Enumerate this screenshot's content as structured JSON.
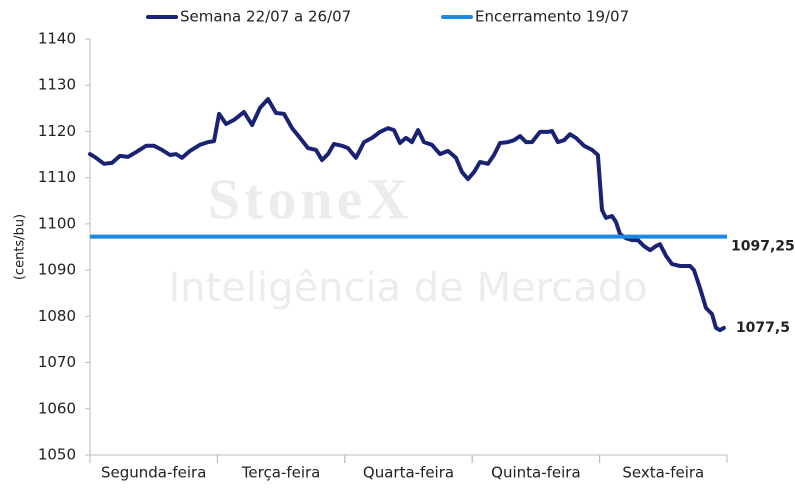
{
  "chart_data": {
    "type": "line",
    "watermark": [
      "StoneX",
      "Inteligência de Mercado"
    ],
    "y_label": "(cents/bu)",
    "xlim": [
      0,
      5
    ],
    "xticks": [
      {
        "value": 0.5,
        "label": "Segunda-feira"
      },
      {
        "value": 1.5,
        "label": "Terça-feira"
      },
      {
        "value": 2.5,
        "label": "Quarta-feira"
      },
      {
        "value": 3.5,
        "label": "Quinta-feira"
      },
      {
        "value": 4.5,
        "label": "Sexta-feira"
      }
    ],
    "ylim": [
      1050,
      1140
    ],
    "yticks": [
      1050,
      1060,
      1070,
      1080,
      1090,
      1100,
      1110,
      1120,
      1130,
      1140
    ],
    "grid": false,
    "series": [
      {
        "name": "Semana 22/07 a 26/07",
        "color": "#1a2373",
        "x": [
          0,
          0.047,
          0.11,
          0.173,
          0.235,
          0.298,
          0.361,
          0.44,
          0.502,
          0.565,
          0.628,
          0.675,
          0.722,
          0.785,
          0.863,
          0.926,
          0.973,
          1.013,
          1.068,
          1.13,
          1.209,
          1.272,
          1.334,
          1.397,
          1.46,
          1.523,
          1.586,
          1.648,
          1.711,
          1.774,
          1.821,
          1.868,
          1.915,
          1.978,
          2.025,
          2.088,
          2.151,
          2.214,
          2.276,
          2.339,
          2.386,
          2.433,
          2.48,
          2.527,
          2.575,
          2.622,
          2.684,
          2.747,
          2.81,
          2.873,
          2.92,
          2.967,
          3.014,
          3.061,
          3.124,
          3.171,
          3.218,
          3.281,
          3.328,
          3.375,
          3.422,
          3.469,
          3.532,
          3.595,
          3.626,
          3.673,
          3.721,
          3.768,
          3.815,
          3.878,
          3.94,
          3.987,
          4.019,
          4.05,
          4.097,
          4.129,
          4.16,
          4.207,
          4.254,
          4.301,
          4.348,
          4.396,
          4.443,
          4.474,
          4.521,
          4.568,
          4.631,
          4.71,
          4.741,
          4.788,
          4.835,
          4.882,
          4.914,
          4.945,
          4.976
        ],
        "values": [
          1115.1,
          1114.3,
          1113.0,
          1113.2,
          1114.7,
          1114.5,
          1115.5,
          1116.9,
          1116.9,
          1116.0,
          1114.9,
          1115.1,
          1114.3,
          1115.8,
          1117.1,
          1117.7,
          1117.9,
          1123.8,
          1121.6,
          1122.5,
          1124.2,
          1121.4,
          1125.1,
          1127.0,
          1124.0,
          1123.8,
          1120.7,
          1118.6,
          1116.4,
          1116.0,
          1113.8,
          1115.1,
          1117.3,
          1116.9,
          1116.4,
          1114.3,
          1117.7,
          1118.6,
          1119.9,
          1120.7,
          1120.3,
          1117.5,
          1118.6,
          1117.7,
          1120.3,
          1117.7,
          1117.1,
          1115.1,
          1115.8,
          1114.3,
          1111.2,
          1109.7,
          1111.2,
          1113.4,
          1113.0,
          1114.9,
          1117.5,
          1117.7,
          1118.1,
          1119.0,
          1117.7,
          1117.7,
          1119.9,
          1119.9,
          1120.1,
          1117.7,
          1118.1,
          1119.4,
          1118.6,
          1116.9,
          1116.0,
          1114.9,
          1103.0,
          1101.3,
          1101.7,
          1100.4,
          1097.8,
          1096.9,
          1096.5,
          1096.5,
          1095.2,
          1094.3,
          1095.2,
          1095.6,
          1093.1,
          1091.3,
          1090.9,
          1090.9,
          1090.0,
          1086.1,
          1081.8,
          1080.5,
          1077.5,
          1077.0,
          1077.5
        ],
        "value_labels": [
          null,
          null,
          null,
          null,
          null,
          null,
          null,
          null,
          null,
          null,
          null,
          null,
          null,
          null,
          null,
          null,
          null,
          null,
          null,
          null,
          null,
          null,
          null,
          null,
          null,
          null,
          null,
          null,
          null,
          null,
          null,
          null,
          null,
          null,
          null,
          null,
          null,
          null,
          null,
          null,
          null,
          null,
          null,
          null,
          null,
          null,
          null,
          null,
          null,
          null,
          null,
          null,
          null,
          null,
          null,
          null,
          null,
          null,
          null,
          null,
          null,
          null,
          null,
          null,
          null,
          null,
          null,
          null,
          null,
          null,
          null,
          null,
          null,
          null,
          null,
          null,
          null,
          null,
          null,
          null,
          null,
          null,
          null,
          null,
          null,
          null,
          null,
          null,
          null,
          null,
          null,
          null,
          null,
          null,
          "1077,5"
        ]
      },
      {
        "name": "Encerramento 19/07",
        "color": "#1e88e5",
        "values": [
          1097.25
        ],
        "value_labels": [
          "1097,25"
        ]
      }
    ]
  }
}
